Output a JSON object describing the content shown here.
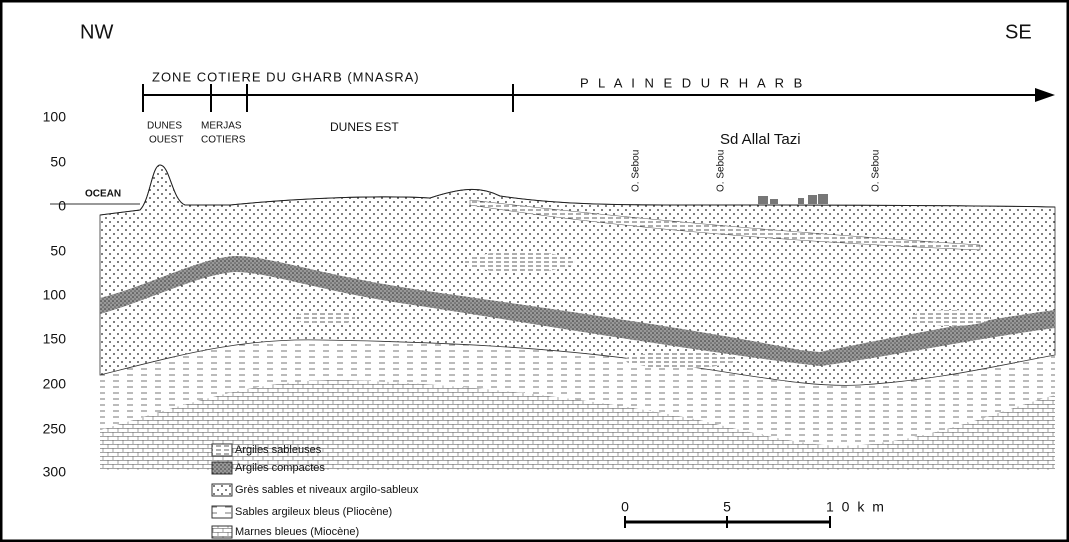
{
  "header": {
    "left": "NW",
    "right": "SE"
  },
  "zones": [
    "ZONE COTIERE DU GHARB (MNASRA)",
    "P L A I N E   D U   R H A R B"
  ],
  "sites": [
    {
      "line1": "DUNES",
      "line2": "OUEST"
    },
    {
      "line1": "MERJAS",
      "line2": "COTIERS"
    },
    {
      "line1": "DUNES EST"
    }
  ],
  "town": "Sd Allal Tazi",
  "ocean": "OCEAN",
  "rivers": [
    "O. Sebou",
    "O. Sebou",
    "O. Sebou"
  ],
  "depth_axis": [
    "100",
    "50",
    "0",
    "50",
    "100",
    "150",
    "200",
    "250",
    "300"
  ],
  "legend": [
    "Argiles sableuses",
    "Argiles compactes",
    "Grès sables et niveaux argilo-sableux",
    "Sables argileux bleus (Pliocène)",
    "Marnes bleues (Miocène)"
  ],
  "scale": [
    "0",
    "5",
    "1 0 k m"
  ]
}
